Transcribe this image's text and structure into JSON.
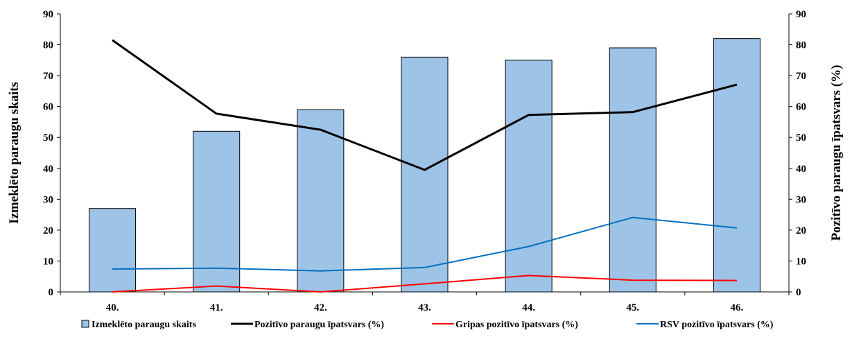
{
  "chart_data": {
    "type": "bar",
    "categories": [
      "40.",
      "41.",
      "42.",
      "43.",
      "44.",
      "45.",
      "46."
    ],
    "series": [
      {
        "name": "Izmeklēto paraugu skaits",
        "type": "bar",
        "axis": "left",
        "color": "#9dc3e6",
        "values": [
          27,
          52,
          59,
          76,
          75,
          79,
          82
        ]
      },
      {
        "name": "Pozitīvo paraugu īpatsvars (%)",
        "type": "line",
        "axis": "right",
        "color": "#000000",
        "values": [
          81.5,
          57.7,
          52.5,
          39.5,
          57.3,
          58.2,
          67.1
        ]
      },
      {
        "name": "Gripas pozitīvo  īpatsvars (%)",
        "type": "line",
        "axis": "right",
        "color": "#ff0000",
        "values": [
          0,
          1.9,
          0,
          2.6,
          5.3,
          3.8,
          3.7
        ]
      },
      {
        "name": "RSV pozitīvo īpatsvars (%)",
        "type": "line",
        "axis": "right",
        "color": "#0070c0",
        "values": [
          7.4,
          7.7,
          6.8,
          7.9,
          14.7,
          24.1,
          20.7
        ]
      }
    ],
    "ylabel": "Izmeklēto paraugu skaits",
    "y2label": "Pozitīvo paraugu īpatsvars (%)",
    "ylim": [
      0,
      90
    ],
    "y2lim": [
      0,
      90
    ],
    "yticks": [
      "0",
      "10",
      "20",
      "30",
      "40",
      "50",
      "60",
      "70",
      "80",
      "90"
    ],
    "y2ticks": [
      "0",
      "10",
      "20",
      "30",
      "40",
      "50",
      "60",
      "70",
      "80",
      "90"
    ],
    "grid": false,
    "legend": "bottom"
  }
}
